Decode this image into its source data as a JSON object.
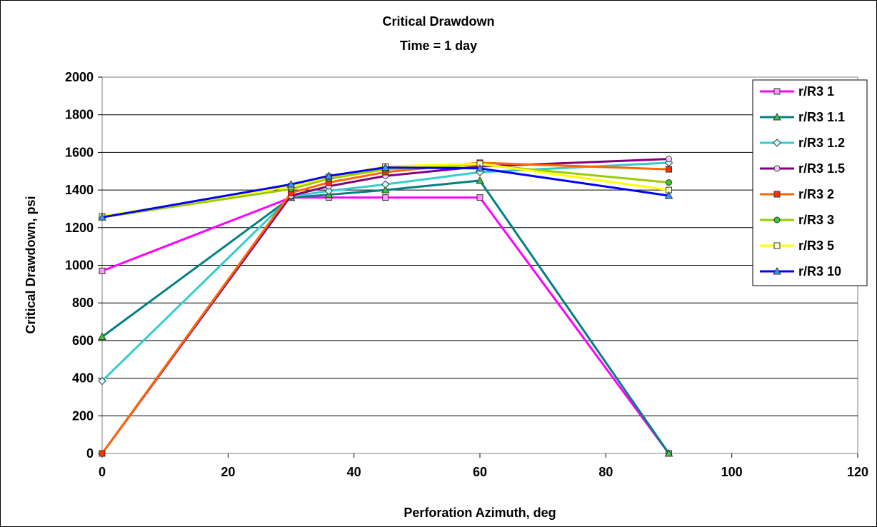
{
  "chart_data": {
    "type": "line",
    "title": "Critical Drawdown",
    "subtitle": "Time = 1 day",
    "xlabel": "Perforation Azimuth, deg",
    "ylabel": "Critical Drawdown, psi",
    "xlim": [
      0,
      120
    ],
    "ylim": [
      0,
      2000
    ],
    "xticks": [
      0,
      20,
      40,
      60,
      80,
      100,
      120
    ],
    "yticks": [
      0,
      200,
      400,
      600,
      800,
      1000,
      1200,
      1400,
      1600,
      1800,
      2000
    ],
    "grid": "horizontal",
    "legend_position": "right",
    "x": [
      0,
      30,
      36,
      45,
      60,
      90
    ],
    "series": [
      {
        "name": "r/R3 1",
        "color": "#ff00ff",
        "marker": "square",
        "marker_fill": "#ff99ff",
        "values": [
          970,
          1360,
          1360,
          1360,
          1360,
          0
        ]
      },
      {
        "name": "r/R3 1.1",
        "color": "#008080",
        "marker": "triangle",
        "marker_fill": "#33cc33",
        "values": [
          620,
          1360,
          1375,
          1400,
          1450,
          0
        ]
      },
      {
        "name": "r/R3 1.2",
        "color": "#33cccc",
        "marker": "diamond",
        "marker_fill": "#ccffff",
        "values": [
          385,
          1365,
          1395,
          1430,
          1495,
          1545
        ]
      },
      {
        "name": "r/R3 1.5",
        "color": "#800080",
        "marker": "circle",
        "marker_fill": "#ffccff",
        "values": [
          0,
          1370,
          1420,
          1475,
          1525,
          1565
        ]
      },
      {
        "name": "r/R3 2",
        "color": "#ff6600",
        "marker": "square",
        "marker_fill": "#ff3300",
        "values": [
          0,
          1385,
          1440,
          1495,
          1545,
          1510
        ]
      },
      {
        "name": "r/R3 3",
        "color": "#99cc00",
        "marker": "circle",
        "marker_fill": "#33cc33",
        "values": [
          1255,
          1405,
          1460,
          1510,
          1535,
          1440
        ]
      },
      {
        "name": "r/R3 5",
        "color": "#ffff00",
        "marker": "square",
        "marker_fill": "#ffffcc",
        "values": [
          1260,
          1420,
          1470,
          1525,
          1540,
          1400
        ]
      },
      {
        "name": "r/R3 10",
        "color": "#0000ff",
        "marker": "triangle",
        "marker_fill": "#3399ff",
        "values": [
          1255,
          1430,
          1475,
          1520,
          1515,
          1370
        ]
      }
    ]
  }
}
